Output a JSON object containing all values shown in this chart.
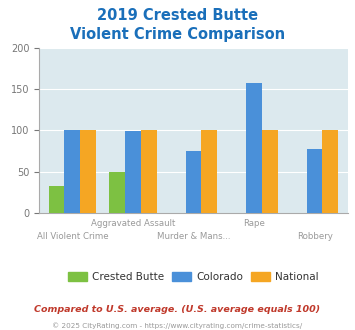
{
  "title_line1": "2019 Crested Butte",
  "title_line2": "Violent Crime Comparison",
  "categories": [
    "All Violent Crime",
    "Aggravated Assault",
    "Murder & Mans...",
    "Rape",
    "Robbery"
  ],
  "series": {
    "Crested Butte": [
      33,
      49,
      0,
      0,
      0
    ],
    "Colorado": [
      101,
      99,
      75,
      158,
      78
    ],
    "National": [
      100,
      100,
      100,
      100,
      100
    ]
  },
  "colors": {
    "Crested Butte": "#7dc142",
    "Colorado": "#4a90d9",
    "National": "#f5a623"
  },
  "ylim": [
    0,
    200
  ],
  "yticks": [
    0,
    50,
    100,
    150,
    200
  ],
  "plot_bg": "#dce9ee",
  "title_color": "#1a6fba",
  "top_labels": {
    "1": "Aggravated Assault",
    "3": "Rape"
  },
  "bot_labels": {
    "0": "All Violent Crime",
    "2": "Murder & Mans...",
    "4": "Robbery"
  },
  "footer_text": "Compared to U.S. average. (U.S. average equals 100)",
  "copyright_text": "© 2025 CityRating.com - https://www.cityrating.com/crime-statistics/",
  "footer_color": "#c0392b",
  "copyright_color": "#999999",
  "bar_width": 0.26
}
